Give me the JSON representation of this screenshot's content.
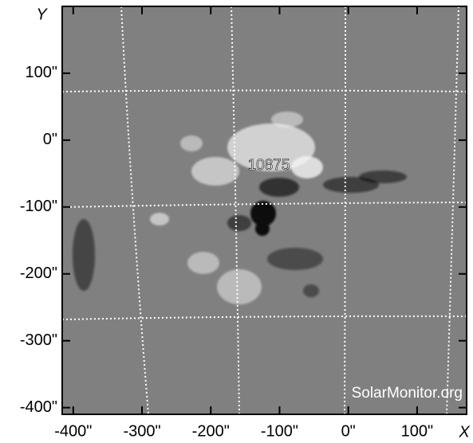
{
  "image": {
    "y_axis_label": "Y",
    "x_axis_label": "X",
    "xlim": [
      -416,
      172
    ],
    "ylim": [
      -410,
      200
    ],
    "xticks": [
      {
        "value": -400,
        "label": "-400\""
      },
      {
        "value": -300,
        "label": "-300\""
      },
      {
        "value": -200,
        "label": "-200\""
      },
      {
        "value": -100,
        "label": "-100\""
      },
      {
        "value": 0,
        "label": "0\""
      },
      {
        "value": 100,
        "label": "100\""
      }
    ],
    "yticks": [
      {
        "value": 100,
        "label": "100\""
      },
      {
        "value": 0,
        "label": "0\""
      },
      {
        "value": -100,
        "label": "-100\""
      },
      {
        "value": -200,
        "label": "-200\""
      },
      {
        "value": -300,
        "label": "-300\""
      },
      {
        "value": -400,
        "label": "-400\""
      }
    ],
    "region_label": "10875",
    "watermark": "SolarMonitor.org"
  }
}
